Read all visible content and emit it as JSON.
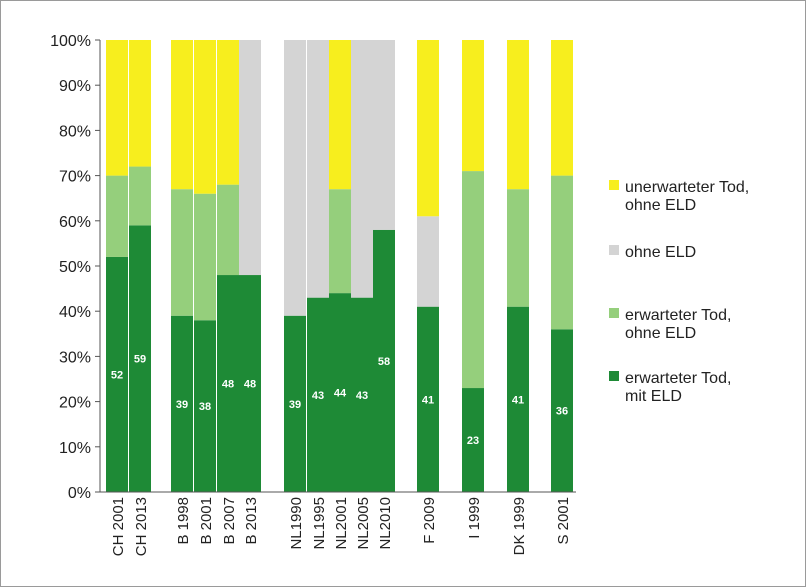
{
  "chart_data": {
    "type": "bar",
    "stacked": true,
    "y_unit": "%",
    "ylim": [
      0,
      100
    ],
    "y_ticks": [
      "0%",
      "10%",
      "20%",
      "30%",
      "40%",
      "50%",
      "60%",
      "70%",
      "80%",
      "90%",
      "100%"
    ],
    "categories": [
      "CH 2001",
      "CH 2013",
      "B 1998",
      "B 2001",
      "B 2007",
      "B 2013",
      "NL1990",
      "NL1995",
      "NL2001",
      "NL2005",
      "NL2010",
      "F 2009",
      "I 1999",
      "DK 1999",
      "S 2001"
    ],
    "series": [
      {
        "name": "erwarteter Tod, mit ELD",
        "color": "#1e8a36",
        "values": [
          52,
          59,
          39,
          38,
          48,
          48,
          39,
          43,
          44,
          43,
          58,
          41,
          23,
          41,
          36
        ]
      },
      {
        "name": "erwarteter Tod, ohne ELD",
        "color": "#95cf7c",
        "values": [
          18,
          13,
          28,
          28,
          20,
          0,
          0,
          0,
          23,
          0,
          0,
          0,
          48,
          26,
          34
        ]
      },
      {
        "name": "ohne ELD",
        "color": "#d4d4d4",
        "values": [
          0,
          0,
          0,
          0,
          0,
          52,
          61,
          57,
          0,
          57,
          42,
          20,
          0,
          0,
          0
        ]
      },
      {
        "name": "unerwarteter Tod, ohne ELD",
        "color": "#f7ee1e",
        "values": [
          30,
          28,
          33,
          34,
          32,
          0,
          0,
          0,
          33,
          0,
          0,
          39,
          29,
          33,
          30
        ]
      }
    ],
    "data_labels": [
      "52",
      "59",
      "39",
      "38",
      "48",
      "48",
      "39",
      "43",
      "44",
      "43",
      "58",
      "41",
      "23",
      "41",
      "36"
    ],
    "legend": {
      "position": "right",
      "items": [
        {
          "lines": [
            "unerwarteter Tod,",
            "ohne ELD"
          ],
          "color": "#f7ee1e"
        },
        {
          "lines": [
            "ohne ELD"
          ],
          "color": "#d4d4d4"
        },
        {
          "lines": [
            "erwarteter Tod,",
            "ohne ELD"
          ],
          "color": "#95cf7c"
        },
        {
          "lines": [
            "erwarteter Tod,",
            "mit ELD"
          ],
          "color": "#1e8a36"
        }
      ]
    },
    "grid": false
  }
}
